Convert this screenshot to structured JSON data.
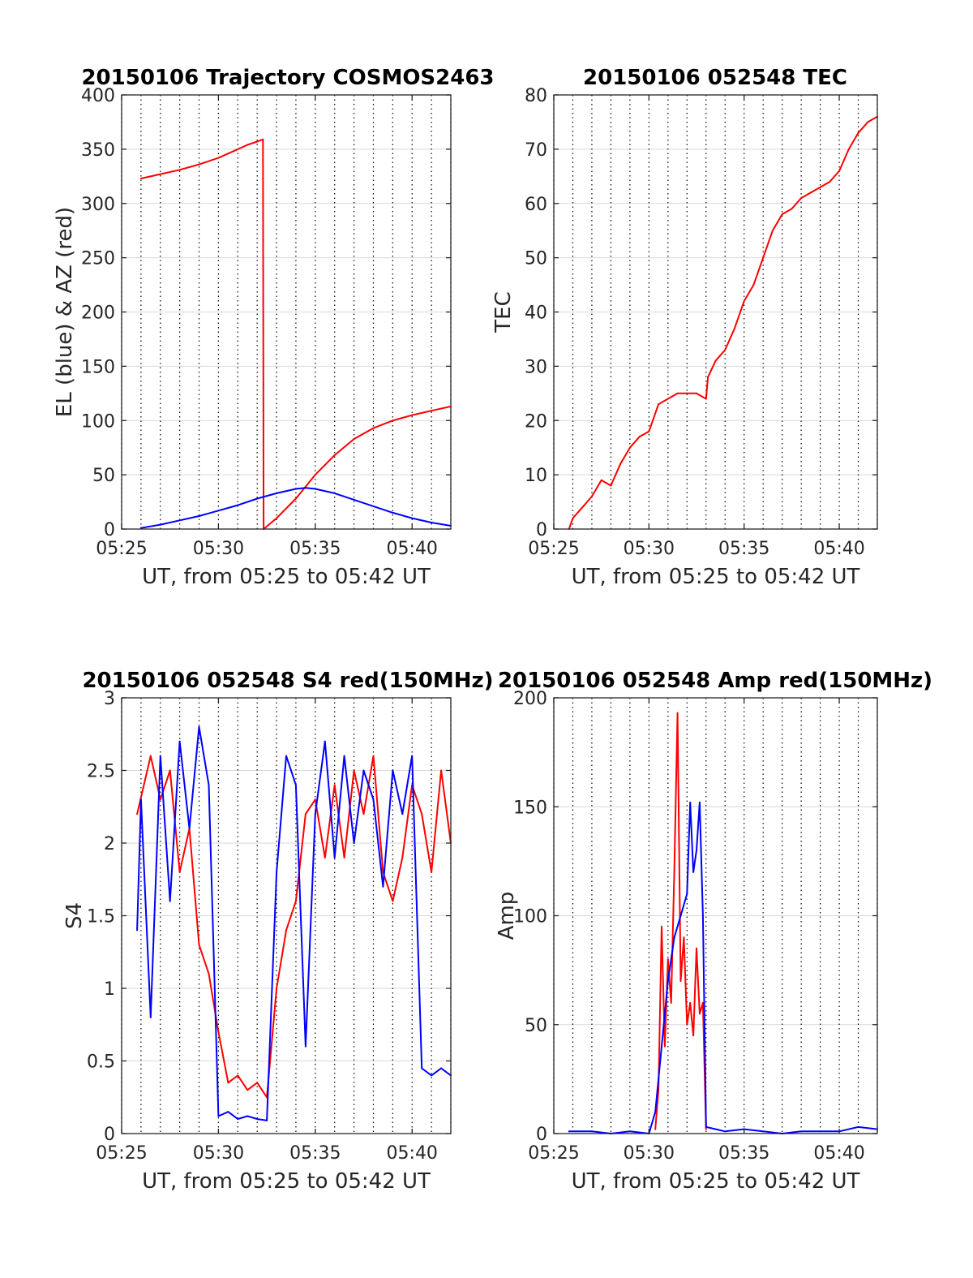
{
  "colors": {
    "red": "#ff0000",
    "blue": "#0000ff",
    "grid": "#d9d9d9",
    "vgrid": "#000000",
    "axis": "#262626"
  },
  "chart_data": [
    {
      "type": "line",
      "title": "20150106 Trajectory COSMOS2463",
      "xlabel": "UT, from 05:25 to 05:42 UT",
      "ylabel": "EL (blue) & AZ (red)",
      "xlim": [
        "05:25",
        "05:42"
      ],
      "xticks": [
        "05:25",
        "05:30",
        "05:35",
        "05:40"
      ],
      "ylim": [
        0,
        400
      ],
      "yticks": [
        "0",
        "50",
        "100",
        "150",
        "200",
        "250",
        "300",
        "350",
        "400"
      ],
      "grid": true,
      "series": [
        {
          "color": "red",
          "x": [
            "05:26",
            "05:27",
            "05:28",
            "05:29",
            "05:30",
            "05:31",
            "05:31:30",
            "05:32",
            "05:32:18",
            "05:32:20",
            "05:33",
            "05:34",
            "05:35",
            "05:36",
            "05:37",
            "05:38",
            "05:39",
            "05:40",
            "05:41",
            "05:42"
          ],
          "values": [
            323,
            327,
            331,
            336,
            342,
            350,
            354,
            357,
            359,
            0,
            10,
            28,
            50,
            68,
            83,
            93,
            100,
            105,
            109,
            113
          ]
        },
        {
          "color": "blue",
          "x": [
            "05:26",
            "05:27",
            "05:28",
            "05:29",
            "05:30",
            "05:31",
            "05:32",
            "05:33",
            "05:34",
            "05:34:30",
            "05:35",
            "05:36",
            "05:37",
            "05:38",
            "05:39",
            "05:40",
            "05:41",
            "05:42"
          ],
          "values": [
            1,
            4,
            8,
            12,
            17,
            22,
            28,
            33,
            37,
            38,
            37,
            33,
            27,
            21,
            15,
            10,
            6,
            3
          ]
        }
      ]
    },
    {
      "type": "line",
      "title": "20150106 052548 TEC",
      "xlabel": "UT, from 05:25 to 05:42 UT",
      "ylabel": "TEC",
      "xlim": [
        "05:25",
        "05:42"
      ],
      "xticks": [
        "05:25",
        "05:30",
        "05:35",
        "05:40"
      ],
      "ylim": [
        0,
        80
      ],
      "yticks": [
        "0",
        "10",
        "20",
        "30",
        "40",
        "50",
        "60",
        "70",
        "80"
      ],
      "grid": true,
      "series": [
        {
          "color": "red",
          "x": [
            "05:25:48",
            "05:26",
            "05:26:30",
            "05:27",
            "05:27:30",
            "05:28",
            "05:28:30",
            "05:29",
            "05:29:30",
            "05:30",
            "05:30:30",
            "05:31",
            "05:31:30",
            "05:32",
            "05:32:30",
            "05:33",
            "05:33:06",
            "05:33:30",
            "05:34",
            "05:34:30",
            "05:35",
            "05:35:30",
            "05:36",
            "05:36:30",
            "05:37",
            "05:37:30",
            "05:38",
            "05:38:30",
            "05:39",
            "05:39:30",
            "05:40",
            "05:40:30",
            "05:41",
            "05:41:30",
            "05:42"
          ],
          "values": [
            0,
            2,
            4,
            6,
            9,
            8,
            12,
            15,
            17,
            18,
            23,
            24,
            25,
            25,
            25,
            24,
            28,
            31,
            33,
            37,
            42,
            45,
            50,
            55,
            58,
            59,
            61,
            62,
            63,
            64,
            66,
            70,
            73,
            75,
            76
          ]
        }
      ]
    },
    {
      "type": "line",
      "title": "20150106 052548 S4 red(150MHz)",
      "xlabel": "UT, from 05:25 to 05:42 UT",
      "ylabel": "S4",
      "xlim": [
        "05:25",
        "05:42"
      ],
      "xticks": [
        "05:25",
        "05:30",
        "05:35",
        "05:40"
      ],
      "ylim": [
        0,
        3
      ],
      "yticks": [
        "0",
        "0.5",
        "1",
        "1.5",
        "2",
        "2.5",
        "3"
      ],
      "grid": true,
      "series": [
        {
          "color": "red",
          "x": [
            "05:25:48",
            "05:26:30",
            "05:27",
            "05:27:30",
            "05:28",
            "05:28:30",
            "05:29",
            "05:29:30",
            "05:30",
            "05:30:30",
            "05:31",
            "05:31:30",
            "05:32",
            "05:32:30",
            "05:33",
            "05:33:30",
            "05:34",
            "05:34:30",
            "05:35",
            "05:35:30",
            "05:36",
            "05:36:30",
            "05:37",
            "05:37:30",
            "05:38",
            "05:38:30",
            "05:39",
            "05:39:30",
            "05:40",
            "05:40:30",
            "05:41",
            "05:41:30",
            "05:42"
          ],
          "values": [
            2.2,
            2.6,
            2.3,
            2.5,
            1.8,
            2.1,
            1.3,
            1.1,
            0.7,
            0.35,
            0.4,
            0.3,
            0.35,
            0.25,
            1.0,
            1.4,
            1.6,
            2.2,
            2.3,
            1.9,
            2.4,
            1.9,
            2.5,
            2.2,
            2.6,
            1.8,
            1.6,
            1.9,
            2.4,
            2.2,
            1.8,
            2.5,
            2.0
          ]
        },
        {
          "color": "blue",
          "x": [
            "05:25:48",
            "05:26",
            "05:26:30",
            "05:27",
            "05:27:30",
            "05:28",
            "05:28:30",
            "05:29",
            "05:29:30",
            "05:30",
            "05:30:30",
            "05:31",
            "05:31:30",
            "05:32",
            "05:32:30",
            "05:33",
            "05:33:30",
            "05:34",
            "05:34:30",
            "05:35",
            "05:35:30",
            "05:36",
            "05:36:30",
            "05:37",
            "05:37:30",
            "05:38",
            "05:38:30",
            "05:39",
            "05:39:30",
            "05:40",
            "05:40:30",
            "05:41",
            "05:41:30",
            "05:42"
          ],
          "values": [
            1.4,
            2.3,
            0.8,
            2.6,
            1.6,
            2.7,
            2.1,
            2.8,
            2.4,
            0.12,
            0.15,
            0.1,
            0.12,
            0.1,
            0.09,
            1.8,
            2.6,
            2.4,
            0.6,
            2.2,
            2.7,
            1.9,
            2.6,
            2.0,
            2.5,
            2.3,
            1.7,
            2.5,
            2.2,
            2.6,
            0.45,
            0.4,
            0.45,
            0.4
          ]
        }
      ]
    },
    {
      "type": "line",
      "title": "20150106 052548 Amp red(150MHz)",
      "xlabel": "UT, from 05:25 to 05:42 UT",
      "ylabel": "Amp",
      "xlim": [
        "05:25",
        "05:42"
      ],
      "xticks": [
        "05:25",
        "05:30",
        "05:35",
        "05:40"
      ],
      "ylim": [
        0,
        200
      ],
      "yticks": [
        "0",
        "50",
        "100",
        "150",
        "200"
      ],
      "grid": true,
      "series": [
        {
          "color": "red",
          "x": [
            "05:30:20",
            "05:30:30",
            "05:30:40",
            "05:30:50",
            "05:31",
            "05:31:10",
            "05:31:20",
            "05:31:30",
            "05:31:40",
            "05:31:50",
            "05:32",
            "05:32:10",
            "05:32:20",
            "05:32:30",
            "05:32:40",
            "05:32:50",
            "05:33"
          ],
          "values": [
            2,
            20,
            95,
            40,
            80,
            60,
            120,
            193,
            70,
            90,
            50,
            60,
            45,
            85,
            55,
            60,
            2
          ]
        },
        {
          "color": "blue",
          "x": [
            "05:25:48",
            "05:27",
            "05:28",
            "05:29",
            "05:30",
            "05:30:20",
            "05:30:40",
            "05:31",
            "05:31:20",
            "05:31:40",
            "05:32",
            "05:32:10",
            "05:32:20",
            "05:32:30",
            "05:32:40",
            "05:32:50",
            "05:33",
            "05:34",
            "05:35",
            "05:36",
            "05:37",
            "05:38",
            "05:39",
            "05:40",
            "05:41",
            "05:42"
          ],
          "values": [
            1,
            1,
            0,
            1,
            0,
            10,
            40,
            70,
            90,
            100,
            110,
            152,
            120,
            130,
            152,
            100,
            3,
            1,
            2,
            1,
            0,
            1,
            1,
            1,
            3,
            2
          ]
        }
      ]
    }
  ]
}
